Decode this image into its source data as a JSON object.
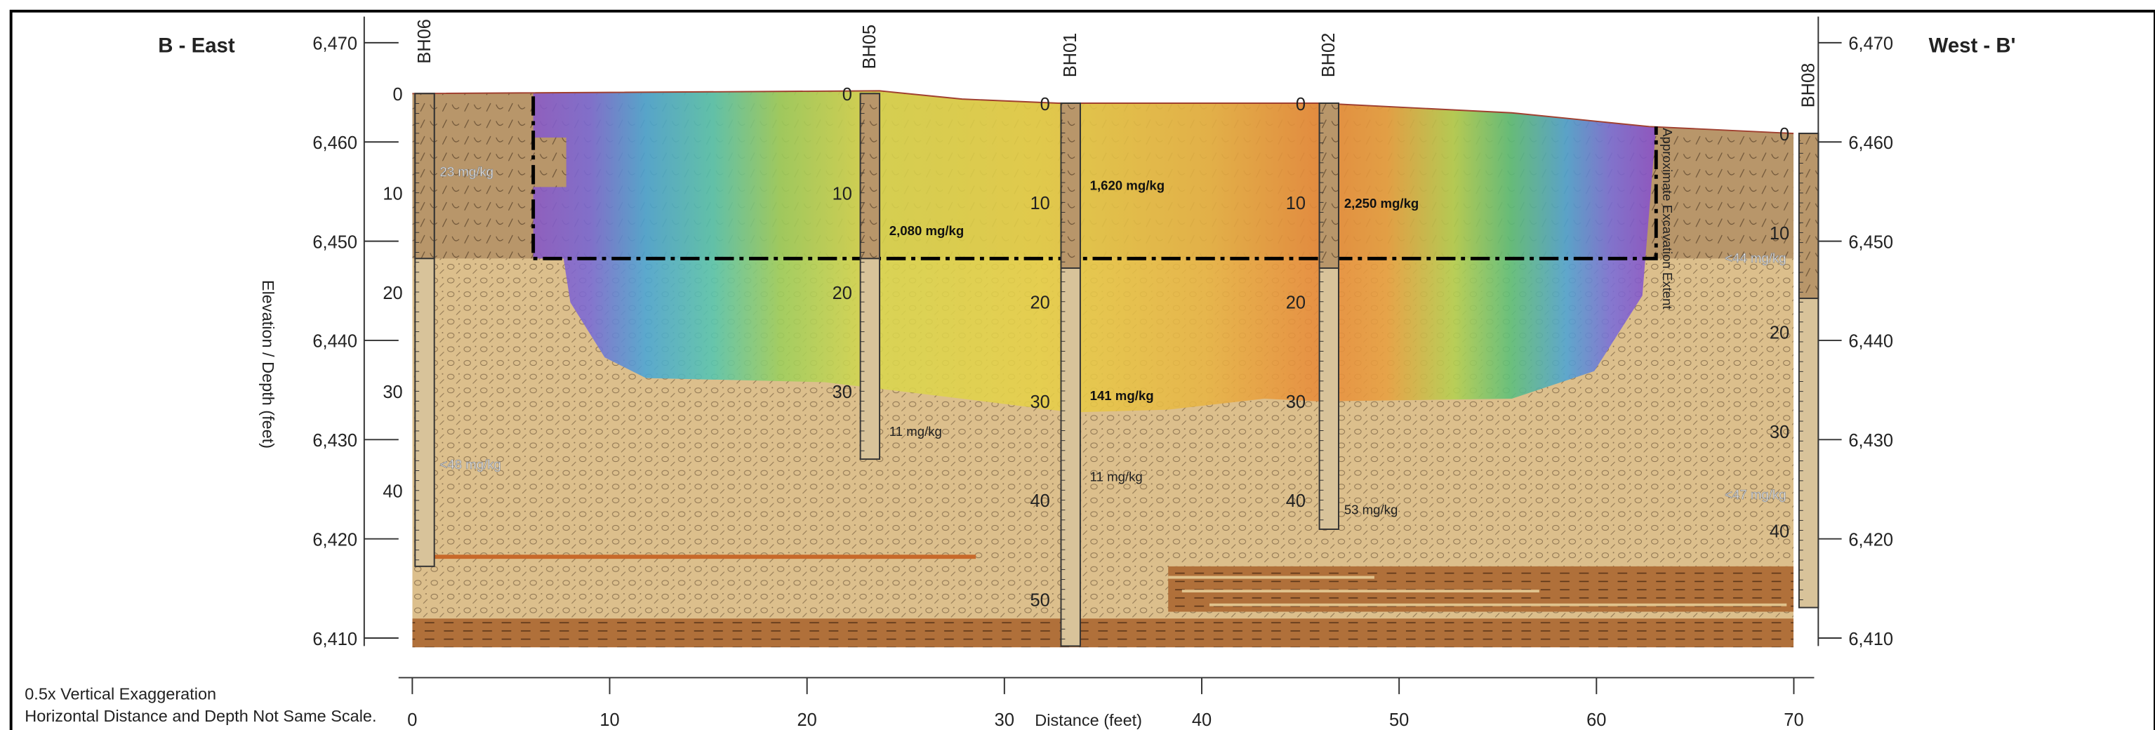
{
  "header": {
    "left_title": "B - East",
    "right_title": "West - B'"
  },
  "axes": {
    "y_label": "Elevation / Depth (feet)",
    "x_label": "Distance (feet)",
    "elevation_ticks": [
      "6,470",
      "6,460",
      "6,450",
      "6,440",
      "6,430",
      "6,420",
      "6,410"
    ],
    "distance_ticks": [
      0,
      10,
      20,
      30,
      40,
      50,
      60,
      70
    ]
  },
  "notes": [
    "0.5x Vertical Exaggeration",
    "Horizontal Distance and Depth Not Same Scale."
  ],
  "annotation": "Approximate Excavation Extent",
  "boreholes": [
    {
      "name": "BH06",
      "depths": [
        0,
        10,
        20,
        30,
        40
      ],
      "results": [
        "23 mg/kg",
        "<48 mg/kg"
      ]
    },
    {
      "name": "BH05",
      "depths": [
        0,
        10,
        20,
        30
      ],
      "results": [
        "2,080 mg/kg",
        "11 mg/kg"
      ]
    },
    {
      "name": "BH01",
      "depths": [
        0,
        10,
        20,
        30,
        40,
        50
      ],
      "results": [
        "1,620 mg/kg",
        "141 mg/kg",
        "11 mg/kg"
      ]
    },
    {
      "name": "BH02",
      "depths": [
        0,
        10,
        20,
        30,
        40
      ],
      "results": [
        "2,250 mg/kg",
        "53 mg/kg"
      ]
    },
    {
      "name": "BH08",
      "depths": [
        0,
        10,
        20,
        30,
        40
      ],
      "results": [
        "<44 mg/kg",
        "<47 mg/kg"
      ]
    }
  ]
}
